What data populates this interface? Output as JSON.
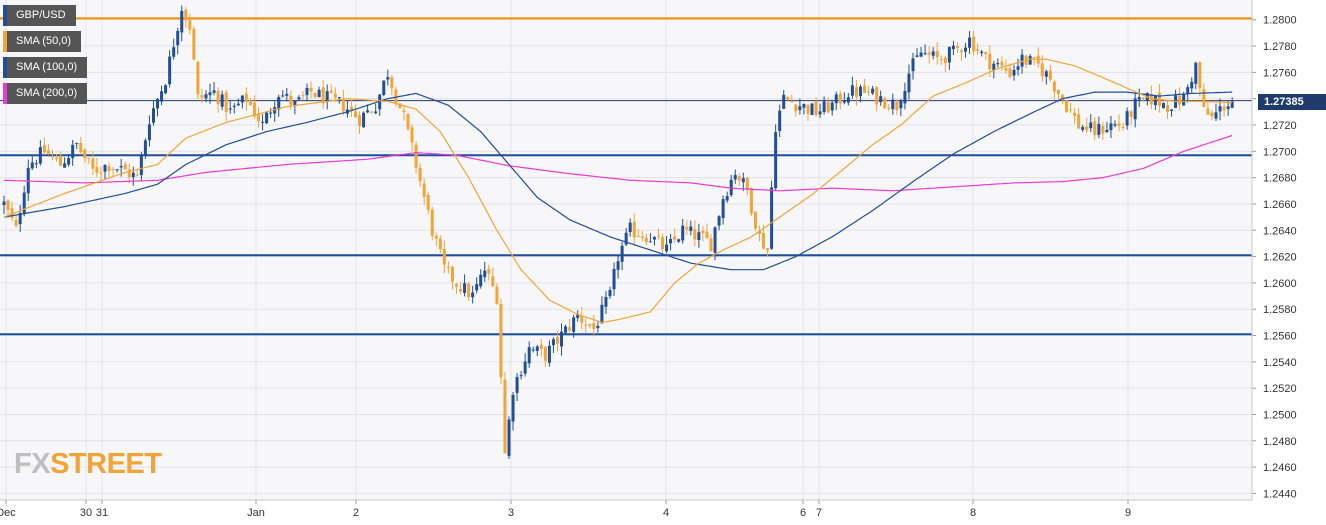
{
  "legend": [
    {
      "label": "GBP/USD",
      "color": "#1f4e9b"
    },
    {
      "label": "SMA (50,0)",
      "color": "#f2a436"
    },
    {
      "label": "SMA (100,0)",
      "color": "#1f4e9b"
    },
    {
      "label": "SMA (200,0)",
      "color": "#e83ad6"
    }
  ],
  "logo": {
    "fx": "FX",
    "street": "STREET"
  },
  "current_price_label": "1.27385",
  "chart_data": {
    "type": "candlestick",
    "symbol": "GBP/USD",
    "ylim": [
      1.2435,
      1.2815
    ],
    "y_ticks": [
      1.244,
      1.246,
      1.248,
      1.25,
      1.252,
      1.254,
      1.256,
      1.258,
      1.26,
      1.262,
      1.264,
      1.266,
      1.268,
      1.27,
      1.272,
      1.274,
      1.276,
      1.278,
      1.28
    ],
    "x_ticks": [
      "Dec",
      "30",
      "31",
      "Jan",
      "2",
      "3",
      "4",
      "6",
      "7",
      "8",
      "9"
    ],
    "grid": true,
    "current_price": 1.27385,
    "horizontal_levels": [
      {
        "value": 1.2801,
        "color": "#f08c00"
      },
      {
        "value": 1.2697,
        "color": "#1f4e9b"
      },
      {
        "value": 1.2621,
        "color": "#1f4e9b"
      },
      {
        "value": 1.2561,
        "color": "#1f4e9b"
      }
    ],
    "anchors": [
      [
        0,
        1.266
      ],
      [
        3,
        1.264
      ],
      [
        6,
        1.269
      ],
      [
        10,
        1.27
      ],
      [
        14,
        1.269
      ],
      [
        18,
        1.2705
      ],
      [
        22,
        1.2685
      ],
      [
        26,
        1.269
      ],
      [
        30,
        1.2685
      ],
      [
        33,
        1.268
      ],
      [
        36,
        1.2725
      ],
      [
        40,
        1.2755
      ],
      [
        44,
        1.281
      ],
      [
        46,
        1.2795
      ],
      [
        48,
        1.274
      ],
      [
        52,
        1.2745
      ],
      [
        56,
        1.273
      ],
      [
        60,
        1.274
      ],
      [
        64,
        1.272
      ],
      [
        68,
        1.2745
      ],
      [
        72,
        1.2735
      ],
      [
        76,
        1.2745
      ],
      [
        80,
        1.274
      ],
      [
        84,
        1.2735
      ],
      [
        88,
        1.2725
      ],
      [
        92,
        1.2735
      ],
      [
        95,
        1.276
      ],
      [
        99,
        1.2725
      ],
      [
        102,
        1.269
      ],
      [
        106,
        1.264
      ],
      [
        109,
        1.261
      ],
      [
        112,
        1.26
      ],
      [
        116,
        1.259
      ],
      [
        119,
        1.261
      ],
      [
        122,
        1.259
      ],
      [
        124,
        1.247
      ],
      [
        126,
        1.252
      ],
      [
        130,
        1.255
      ],
      [
        134,
        1.2545
      ],
      [
        138,
        1.256
      ],
      [
        142,
        1.2575
      ],
      [
        146,
        1.2565
      ],
      [
        150,
        1.259
      ],
      [
        152,
        1.262
      ],
      [
        155,
        1.264
      ],
      [
        160,
        1.2635
      ],
      [
        164,
        1.2625
      ],
      [
        168,
        1.264
      ],
      [
        172,
        1.2635
      ],
      [
        175,
        1.263
      ],
      [
        178,
        1.2665
      ],
      [
        181,
        1.2685
      ],
      [
        184,
        1.267
      ],
      [
        187,
        1.2635
      ],
      [
        189,
        1.2625
      ],
      [
        191,
        1.272
      ],
      [
        193,
        1.274
      ],
      [
        197,
        1.2735
      ],
      [
        201,
        1.273
      ],
      [
        205,
        1.2735
      ],
      [
        209,
        1.2745
      ],
      [
        213,
        1.2745
      ],
      [
        217,
        1.274
      ],
      [
        221,
        1.2735
      ],
      [
        224,
        1.276
      ],
      [
        227,
        1.2775
      ],
      [
        231,
        1.277
      ],
      [
        235,
        1.2775
      ],
      [
        239,
        1.2785
      ],
      [
        243,
        1.277
      ],
      [
        246,
        1.2765
      ],
      [
        249,
        1.276
      ],
      [
        252,
        1.277
      ],
      [
        256,
        1.2765
      ],
      [
        259,
        1.2755
      ],
      [
        262,
        1.274
      ],
      [
        266,
        1.272
      ],
      [
        270,
        1.2715
      ],
      [
        274,
        1.272
      ],
      [
        277,
        1.272
      ],
      [
        280,
        1.2735
      ],
      [
        284,
        1.274
      ],
      [
        288,
        1.2735
      ],
      [
        292,
        1.274
      ],
      [
        295,
        1.2765
      ],
      [
        297,
        1.273
      ],
      [
        299,
        1.2725
      ],
      [
        302,
        1.2735
      ],
      [
        304,
        1.2738
      ]
    ],
    "sma50": [
      [
        0,
        1.265
      ],
      [
        15,
        1.2668
      ],
      [
        30,
        1.2684
      ],
      [
        38,
        1.269
      ],
      [
        45,
        1.271
      ],
      [
        55,
        1.2722
      ],
      [
        70,
        1.2734
      ],
      [
        85,
        1.274
      ],
      [
        95,
        1.2738
      ],
      [
        102,
        1.2732
      ],
      [
        108,
        1.2715
      ],
      [
        115,
        1.268
      ],
      [
        122,
        1.264
      ],
      [
        128,
        1.261
      ],
      [
        135,
        1.2587
      ],
      [
        142,
        1.2576
      ],
      [
        148,
        1.257
      ],
      [
        152,
        1.2572
      ],
      [
        160,
        1.2578
      ],
      [
        166,
        1.26
      ],
      [
        172,
        1.2615
      ],
      [
        178,
        1.2625
      ],
      [
        185,
        1.2635
      ],
      [
        192,
        1.265
      ],
      [
        200,
        1.2667
      ],
      [
        208,
        1.2687
      ],
      [
        215,
        1.2705
      ],
      [
        222,
        1.272
      ],
      [
        230,
        1.2742
      ],
      [
        238,
        1.2752
      ],
      [
        246,
        1.2763
      ],
      [
        254,
        1.277
      ],
      [
        258,
        1.277
      ],
      [
        265,
        1.2765
      ],
      [
        272,
        1.2756
      ],
      [
        278,
        1.2748
      ],
      [
        284,
        1.274
      ],
      [
        290,
        1.2738
      ],
      [
        296,
        1.2738
      ],
      [
        304,
        1.2737
      ]
    ],
    "sma100": [
      [
        0,
        1.265
      ],
      [
        15,
        1.2658
      ],
      [
        30,
        1.2668
      ],
      [
        38,
        1.2675
      ],
      [
        45,
        1.269
      ],
      [
        55,
        1.2705
      ],
      [
        65,
        1.2715
      ],
      [
        75,
        1.2722
      ],
      [
        85,
        1.273
      ],
      [
        95,
        1.274
      ],
      [
        102,
        1.2744
      ],
      [
        110,
        1.2735
      ],
      [
        118,
        1.2715
      ],
      [
        125,
        1.269
      ],
      [
        132,
        1.2665
      ],
      [
        140,
        1.2648
      ],
      [
        150,
        1.2635
      ],
      [
        160,
        1.2625
      ],
      [
        170,
        1.2615
      ],
      [
        180,
        1.261
      ],
      [
        188,
        1.261
      ],
      [
        196,
        1.262
      ],
      [
        205,
        1.2635
      ],
      [
        215,
        1.2655
      ],
      [
        225,
        1.2677
      ],
      [
        235,
        1.2698
      ],
      [
        245,
        1.2715
      ],
      [
        255,
        1.273
      ],
      [
        262,
        1.274
      ],
      [
        270,
        1.2745
      ],
      [
        278,
        1.2745
      ],
      [
        286,
        1.2742
      ],
      [
        294,
        1.2744
      ],
      [
        304,
        1.2745
      ]
    ],
    "sma200": [
      [
        0,
        1.2678
      ],
      [
        20,
        1.2676
      ],
      [
        38,
        1.2678
      ],
      [
        50,
        1.2684
      ],
      [
        70,
        1.269
      ],
      [
        90,
        1.2694
      ],
      [
        102,
        1.2699
      ],
      [
        112,
        1.2697
      ],
      [
        125,
        1.2689
      ],
      [
        140,
        1.2683
      ],
      [
        155,
        1.2678
      ],
      [
        170,
        1.2676
      ],
      [
        180,
        1.2672
      ],
      [
        192,
        1.267
      ],
      [
        205,
        1.2672
      ],
      [
        220,
        1.267
      ],
      [
        235,
        1.2673
      ],
      [
        250,
        1.2676
      ],
      [
        262,
        1.2677
      ],
      [
        272,
        1.268
      ],
      [
        282,
        1.2687
      ],
      [
        292,
        1.27
      ],
      [
        304,
        1.2712
      ]
    ]
  }
}
